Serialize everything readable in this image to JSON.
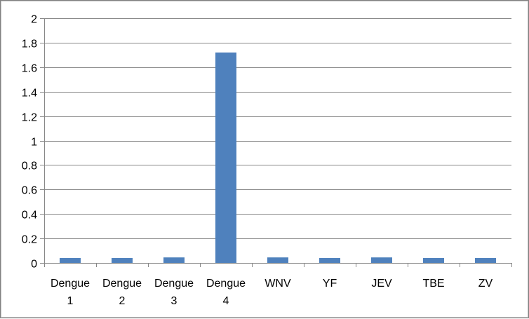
{
  "chart_data": {
    "type": "bar",
    "categories": [
      [
        "Dengue",
        "1"
      ],
      [
        "Dengue",
        "2"
      ],
      [
        "Dengue",
        "3"
      ],
      [
        "Dengue",
        "4"
      ],
      [
        "WNV"
      ],
      [
        "YF"
      ],
      [
        "JEV"
      ],
      [
        "TBE"
      ],
      [
        "ZV"
      ]
    ],
    "values": [
      0.04,
      0.04,
      0.045,
      1.72,
      0.045,
      0.04,
      0.045,
      0.04,
      0.04
    ],
    "ylim": [
      0,
      2
    ],
    "yticks": [
      "0",
      "0.2",
      "0.4",
      "0.6",
      "0.8",
      "1",
      "1.2",
      "1.4",
      "1.6",
      "1.8",
      "2"
    ],
    "grid": true,
    "legend": "none",
    "colors": {
      "bar": "#4f81bd",
      "grid": "#878787",
      "axis": "#878787"
    }
  }
}
